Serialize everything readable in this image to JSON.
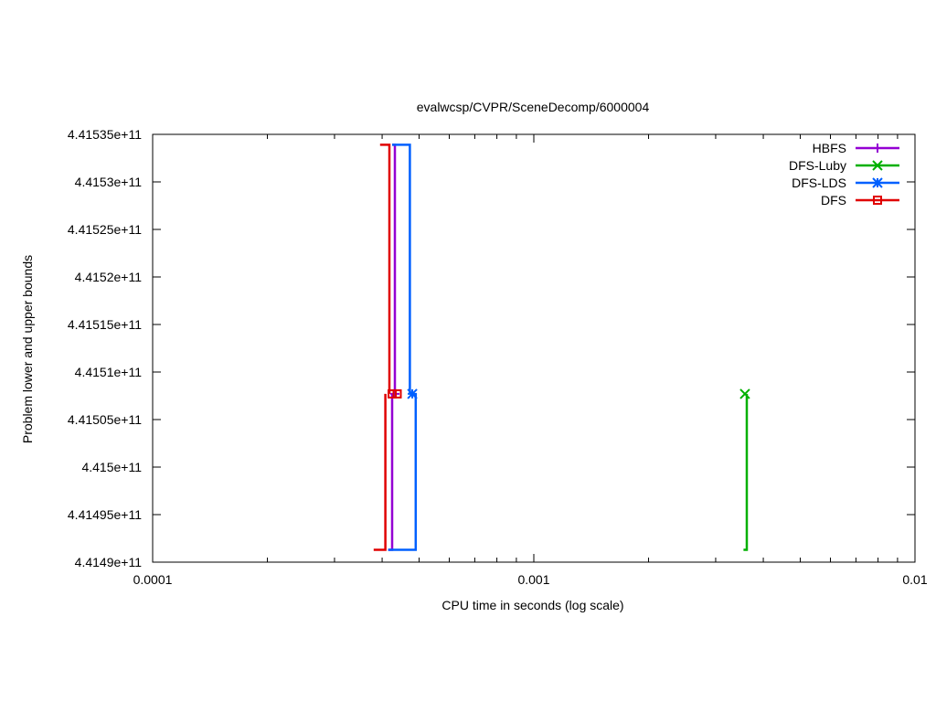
{
  "chart_data": {
    "type": "line",
    "title": "evalwcsp/CVPR/SceneDecomp/6000004",
    "xlabel": "CPU time in seconds (log scale)",
    "ylabel": "Problem lower and upper bounds",
    "x_scale": "log",
    "xlim": [
      0.0001,
      0.01
    ],
    "ylim": [
      441490000000,
      441535000000
    ],
    "x_ticks": [
      {
        "value": 0.0001,
        "label": "0.0001"
      },
      {
        "value": 0.001,
        "label": "0.001"
      },
      {
        "value": 0.01,
        "label": "0.01"
      }
    ],
    "y_ticks": [
      {
        "value": 441490000000,
        "label": "4.4149e+11"
      },
      {
        "value": 441495000000,
        "label": "4.41495e+11"
      },
      {
        "value": 441500000000,
        "label": "4.415e+11"
      },
      {
        "value": 441505000000,
        "label": "4.41505e+11"
      },
      {
        "value": 441510000000,
        "label": "4.4151e+11"
      },
      {
        "value": 441515000000,
        "label": "4.41515e+11"
      },
      {
        "value": 441520000000,
        "label": "4.4152e+11"
      },
      {
        "value": 441525000000,
        "label": "4.41525e+11"
      },
      {
        "value": 441530000000,
        "label": "4.4153e+11"
      },
      {
        "value": 441535000000,
        "label": "4.41535e+11"
      }
    ],
    "grid": false,
    "legend_position": "top-right",
    "series": [
      {
        "name": "HBFS",
        "color": "#9400d3",
        "marker": "plus",
        "upper": [
          [
            0.000425,
            441533900000
          ],
          [
            0.000432,
            441533900000
          ],
          [
            0.000432,
            441507700000
          ]
        ],
        "lower": [
          [
            0.000415,
            441491300000
          ],
          [
            0.000425,
            441491300000
          ],
          [
            0.000425,
            441507700000
          ]
        ],
        "markers": [
          [
            0.000432,
            441507700000
          ]
        ]
      },
      {
        "name": "DFS-Luby",
        "color": "#00b000",
        "marker": "x",
        "upper": [
          [
            0.00358,
            441507700000
          ]
        ],
        "lower": [
          [
            0.00355,
            441491300000
          ],
          [
            0.00362,
            441491300000
          ],
          [
            0.00362,
            441507700000
          ]
        ],
        "markers": [
          [
            0.00358,
            441507700000
          ]
        ]
      },
      {
        "name": "DFS-LDS",
        "color": "#0060ff",
        "marker": "star",
        "upper": [
          [
            0.000425,
            441533900000
          ],
          [
            0.000473,
            441533900000
          ],
          [
            0.000473,
            441507700000
          ]
        ],
        "lower": [
          [
            0.000415,
            441491300000
          ],
          [
            0.00049,
            441491300000
          ],
          [
            0.00049,
            441507700000
          ]
        ],
        "markers": [
          [
            0.00048,
            441507700000
          ]
        ]
      },
      {
        "name": "DFS",
        "color": "#e00000",
        "marker": "square",
        "upper": [
          [
            0.000395,
            441533900000
          ],
          [
            0.000418,
            441533900000
          ],
          [
            0.000418,
            441507700000
          ]
        ],
        "lower": [
          [
            0.00038,
            441491300000
          ],
          [
            0.000408,
            441491300000
          ],
          [
            0.000408,
            441507700000
          ]
        ],
        "markers": [
          [
            0.000425,
            441507700000
          ],
          [
            0.000438,
            441507700000
          ]
        ]
      }
    ]
  }
}
